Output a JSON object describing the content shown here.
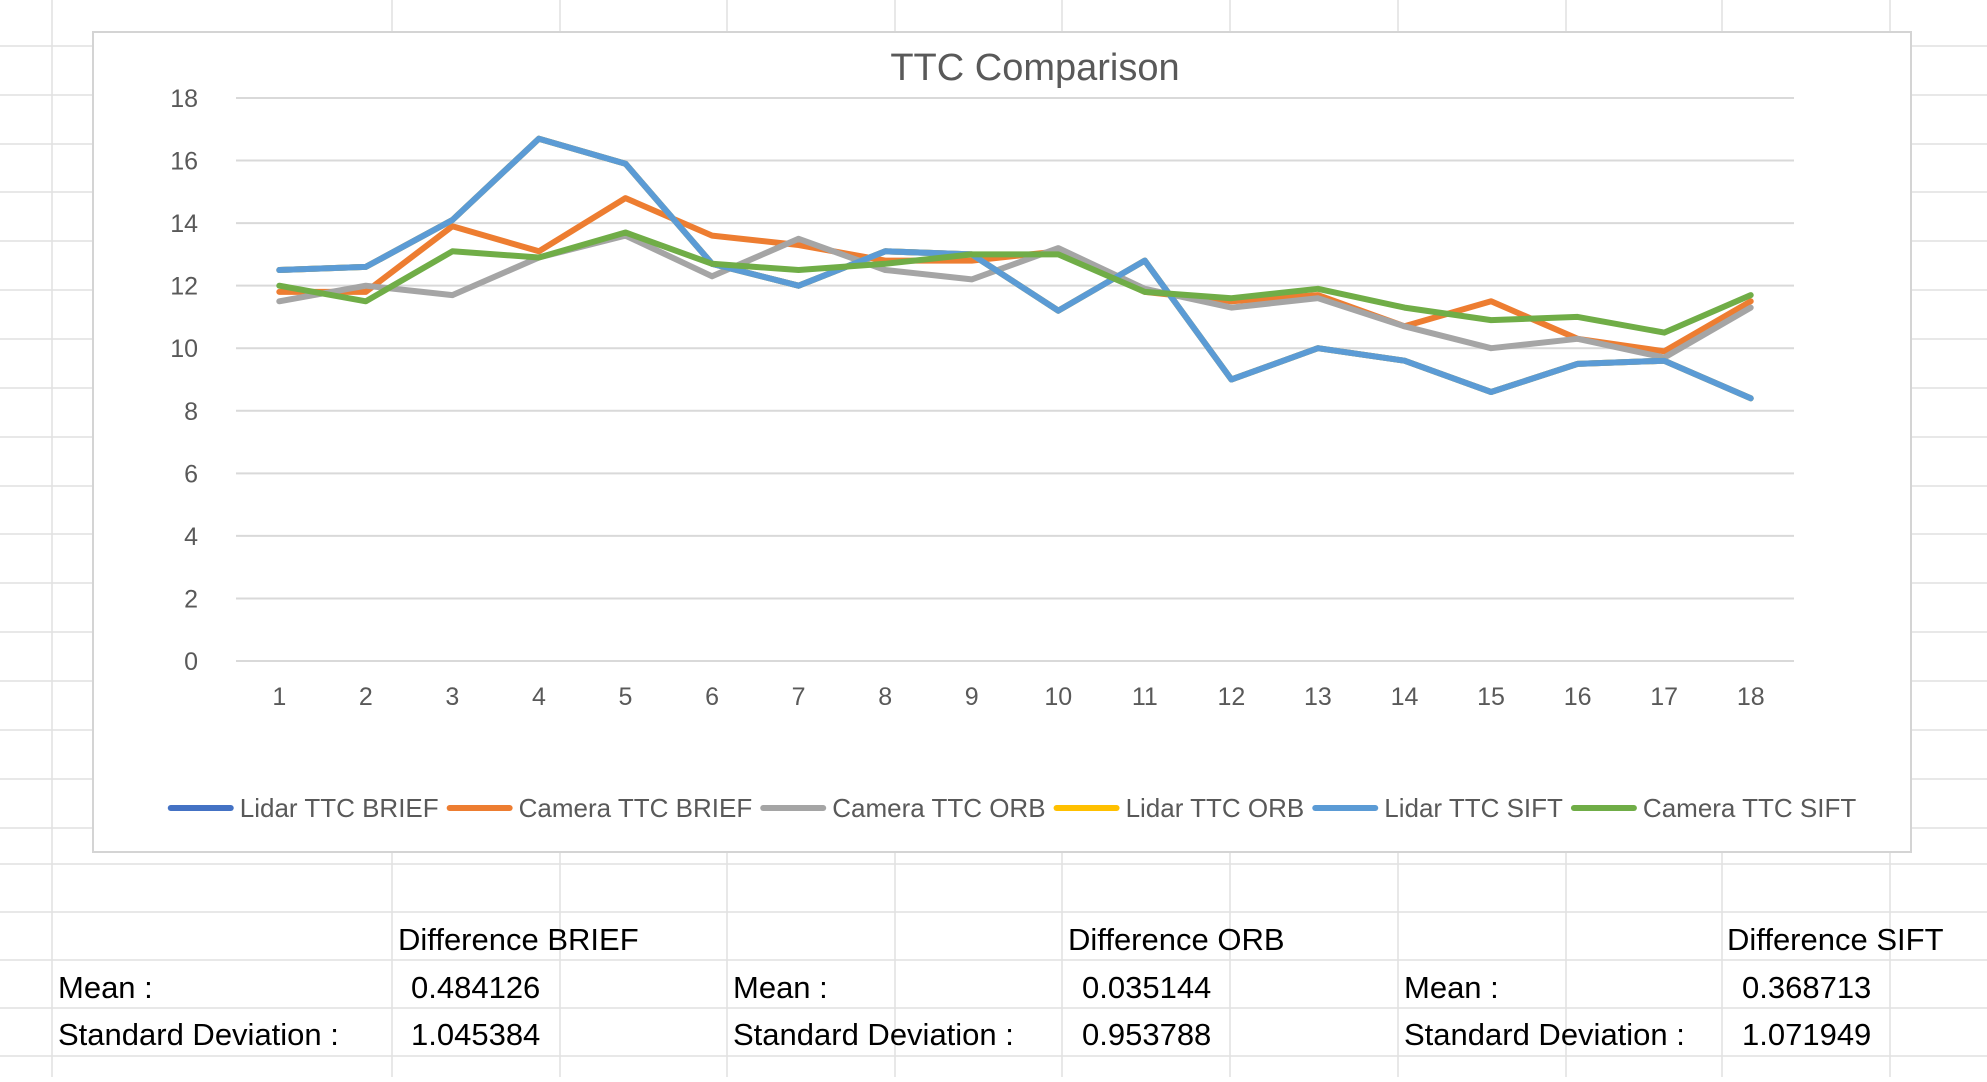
{
  "chart_data": {
    "type": "line",
    "title": "TTC Comparison",
    "xlabel": "",
    "ylabel": "",
    "x": [
      1,
      2,
      3,
      4,
      5,
      6,
      7,
      8,
      9,
      10,
      11,
      12,
      13,
      14,
      15,
      16,
      17,
      18
    ],
    "ylim": [
      0,
      18
    ],
    "yticks": [
      0,
      2,
      4,
      6,
      8,
      10,
      12,
      14,
      16,
      18
    ],
    "grid": true,
    "legend": "bottom",
    "series": [
      {
        "name": "Lidar TTC BRIEF",
        "color": "#4472C4",
        "values": [
          12.5,
          12.6,
          14.1,
          16.7,
          15.9,
          12.7,
          12.0,
          13.1,
          13.0,
          11.2,
          12.8,
          9.0,
          10.0,
          9.6,
          8.6,
          9.5,
          9.6,
          8.4
        ]
      },
      {
        "name": "Camera TTC BRIEF",
        "color": "#ED7D31",
        "values": [
          11.8,
          11.8,
          13.9,
          13.1,
          14.8,
          13.6,
          13.3,
          12.8,
          12.8,
          13.1,
          11.8,
          11.5,
          11.7,
          10.7,
          11.5,
          10.3,
          9.9,
          11.5
        ]
      },
      {
        "name": "Camera TTC ORB",
        "color": "#A5A5A5",
        "values": [
          11.5,
          12.0,
          11.7,
          12.9,
          13.6,
          12.3,
          13.5,
          12.5,
          12.2,
          13.2,
          11.9,
          11.3,
          11.6,
          10.7,
          10.0,
          10.3,
          9.7,
          11.3
        ]
      },
      {
        "name": "Lidar TTC ORB",
        "color": "#FFC000",
        "values": [
          12.5,
          12.6,
          14.1,
          16.7,
          15.9,
          12.7,
          12.0,
          13.1,
          13.0,
          11.2,
          12.8,
          9.0,
          10.0,
          9.6,
          8.6,
          9.5,
          9.6,
          8.4
        ]
      },
      {
        "name": "Lidar TTC SIFT",
        "color": "#5B9BD5",
        "values": [
          12.5,
          12.6,
          14.1,
          16.7,
          15.9,
          12.7,
          12.0,
          13.1,
          13.0,
          11.2,
          12.8,
          9.0,
          10.0,
          9.6,
          8.6,
          9.5,
          9.6,
          8.4
        ]
      },
      {
        "name": "Camera TTC SIFT",
        "color": "#70AD47",
        "values": [
          12.0,
          11.5,
          13.1,
          12.9,
          13.7,
          12.7,
          12.5,
          12.7,
          13.0,
          13.0,
          11.8,
          11.6,
          11.9,
          11.3,
          10.9,
          11.0,
          10.5,
          11.7
        ]
      }
    ]
  },
  "table": {
    "groups": [
      {
        "header": "Difference BRIEF",
        "mean_label": "Mean :",
        "mean": "0.484126",
        "sd_label": "Standard Deviation :",
        "sd": "1.045384"
      },
      {
        "header": "Difference ORB",
        "mean_label": "Mean :",
        "mean": "0.035144",
        "sd_label": "Standard Deviation :",
        "sd": "0.953788"
      },
      {
        "header": "Difference SIFT",
        "mean_label": "Mean :",
        "mean": "0.368713",
        "sd_label": "Standard Deviation :",
        "sd": "1.071949"
      }
    ]
  },
  "colors": {
    "gridline": "#d9d9d9",
    "cell_border": "#e1e1e1",
    "axis_text": "#595959"
  }
}
